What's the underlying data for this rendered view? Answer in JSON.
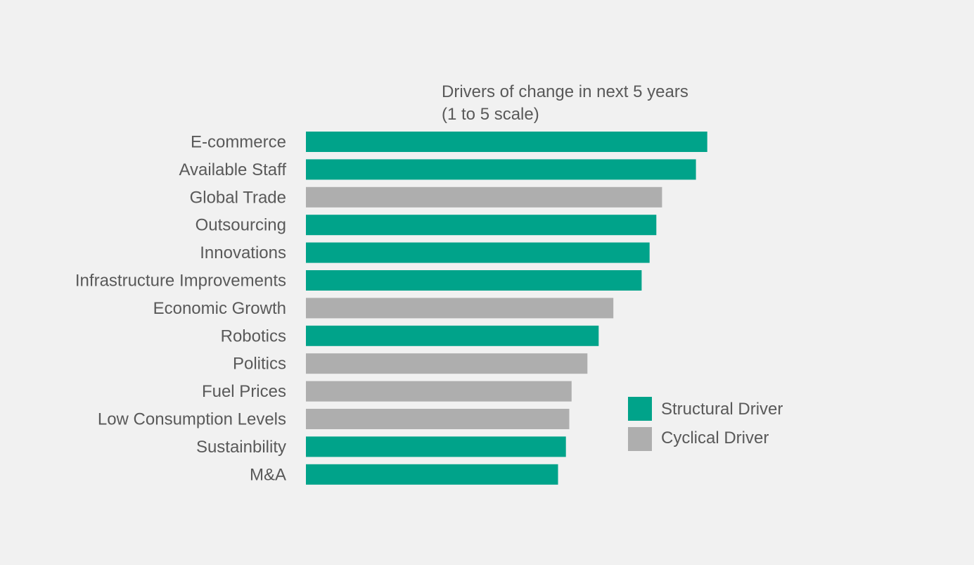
{
  "colors": {
    "background": "#f1f1f1",
    "structural": "#00a38a",
    "cyclical": "#aeaeae",
    "text": "#595959"
  },
  "chart_data": {
    "type": "bar",
    "orientation": "horizontal",
    "title_lines": [
      "Drivers of change in next 5 years",
      "(1 to 5 scale)"
    ],
    "categories": [
      "E-commerce",
      "Available Staff",
      "Global Trade",
      "Outsourcing",
      "Innovations",
      "Infrastructure Improvements",
      "Economic Growth",
      "Robotics",
      "Politics",
      "Fuel Prices",
      "Low Consumption Levels",
      "Sustainbility",
      "M&A"
    ],
    "values": [
      4.55,
      4.45,
      4.15,
      4.1,
      4.04,
      3.97,
      3.72,
      3.59,
      3.49,
      3.35,
      3.33,
      3.3,
      3.23
    ],
    "driver_types": [
      "structural",
      "structural",
      "cyclical",
      "structural",
      "structural",
      "structural",
      "cyclical",
      "structural",
      "cyclical",
      "cyclical",
      "cyclical",
      "structural",
      "structural"
    ],
    "xlim": [
      1,
      5
    ],
    "legend": [
      {
        "key": "structural",
        "label": "Structural Driver"
      },
      {
        "key": "cyclical",
        "label": "Cyclical Driver"
      }
    ],
    "legend_position": "right",
    "grid": false,
    "xlabel": "",
    "ylabel": ""
  }
}
